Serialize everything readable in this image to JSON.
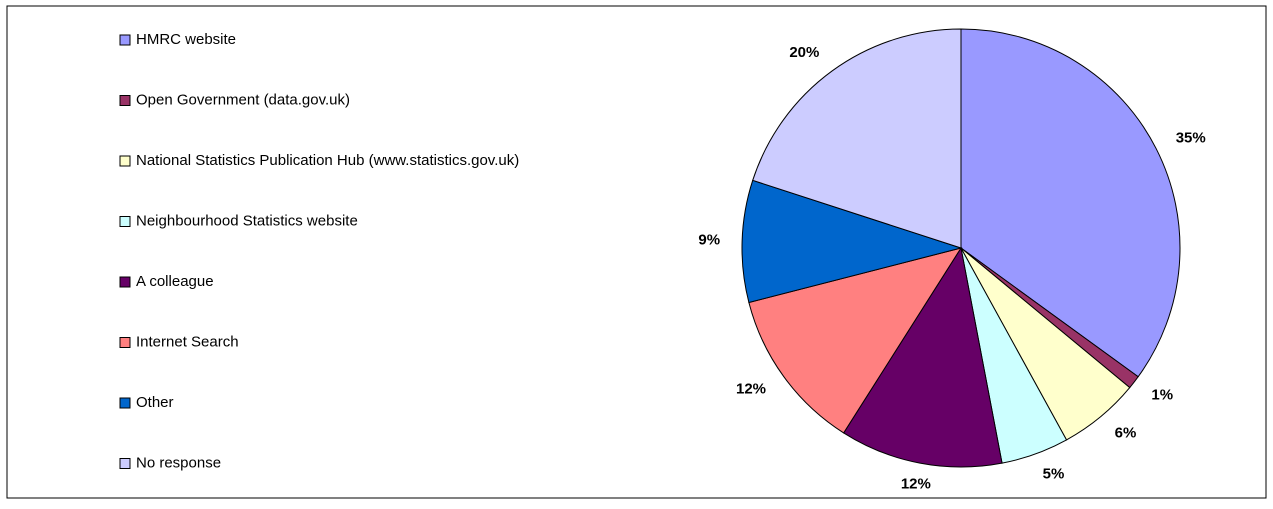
{
  "chart_data": {
    "type": "pie",
    "categories": [
      "HMRC website",
      "Open Government (data.gov.uk)",
      "National Statistics Publication Hub (www.statistics.gov.uk)",
      "Neighbourhood Statistics website",
      "A colleague",
      "Internet Search",
      "Other",
      "No response"
    ],
    "values": [
      35,
      1,
      6,
      5,
      12,
      12,
      9,
      20
    ],
    "value_labels": [
      "35%",
      "1%",
      "6%",
      "5%",
      "12%",
      "12%",
      "9%",
      "20%"
    ],
    "colors": [
      "#9999ff",
      "#993366",
      "#ffffcc",
      "#ccffff",
      "#660066",
      "#ff8080",
      "#0066cc",
      "#ccccff"
    ],
    "legend": "left"
  }
}
